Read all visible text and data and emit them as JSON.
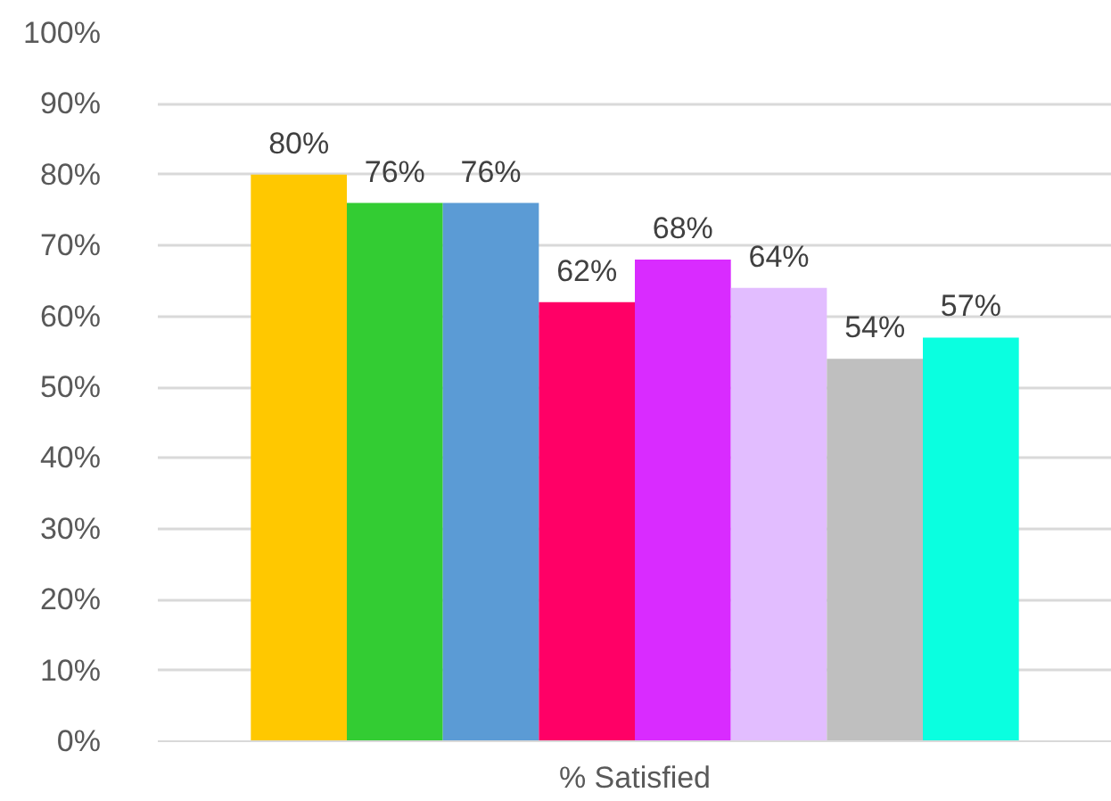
{
  "chart_data": {
    "type": "bar",
    "categories": [
      "% Satisfied"
    ],
    "series": [
      {
        "color": "#ffc800",
        "values": [
          80
        ],
        "value_labels": [
          "80%"
        ]
      },
      {
        "color": "#33cc33",
        "values": [
          76
        ],
        "value_labels": [
          "76%"
        ]
      },
      {
        "color": "#5b9bd5",
        "values": [
          76
        ],
        "value_labels": [
          "76%"
        ]
      },
      {
        "color": "#ff0066",
        "values": [
          62
        ],
        "value_labels": [
          "62%"
        ]
      },
      {
        "color": "#d92bff",
        "values": [
          68
        ],
        "value_labels": [
          "68%"
        ]
      },
      {
        "color": "#e2bdff",
        "values": [
          64
        ],
        "value_labels": [
          "64%"
        ]
      },
      {
        "color": "#bfbfbf",
        "values": [
          54
        ],
        "value_labels": [
          "54%"
        ]
      },
      {
        "color": "#0affe0",
        "values": [
          57
        ],
        "value_labels": [
          "57%"
        ]
      }
    ],
    "ylim": [
      0,
      100
    ],
    "yticks": [
      {
        "value": 0,
        "label": "0%"
      },
      {
        "value": 10,
        "label": "10%"
      },
      {
        "value": 20,
        "label": "20%"
      },
      {
        "value": 30,
        "label": "30%"
      },
      {
        "value": 40,
        "label": "40%"
      },
      {
        "value": 50,
        "label": "50%"
      },
      {
        "value": 60,
        "label": "60%"
      },
      {
        "value": 70,
        "label": "70%"
      },
      {
        "value": 80,
        "label": "80%"
      },
      {
        "value": 90,
        "label": "90%"
      },
      {
        "value": 100,
        "label": "100%"
      }
    ],
    "grid": "y"
  }
}
